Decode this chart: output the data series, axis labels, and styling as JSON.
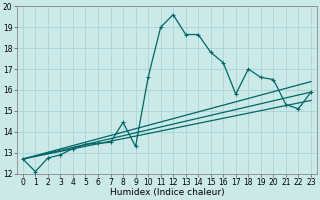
{
  "background_color": "#cce9e9",
  "grid_color": "#aad4d4",
  "line_color": "#006666",
  "xlim": [
    -0.5,
    23.5
  ],
  "ylim": [
    12,
    20
  ],
  "xlabel": "Humidex (Indice chaleur)",
  "xticks": [
    0,
    1,
    2,
    3,
    4,
    5,
    6,
    7,
    8,
    9,
    10,
    11,
    12,
    13,
    14,
    15,
    16,
    17,
    18,
    19,
    20,
    21,
    22,
    23
  ],
  "yticks": [
    12,
    13,
    14,
    15,
    16,
    17,
    18,
    19,
    20
  ],
  "main_x": [
    0,
    1,
    2,
    3,
    4,
    5,
    6,
    7,
    8,
    9,
    10,
    11,
    12,
    13,
    14,
    15,
    16,
    17,
    18,
    19,
    20,
    21,
    22,
    23
  ],
  "main_y": [
    12.7,
    12.1,
    12.75,
    12.9,
    13.2,
    13.4,
    13.45,
    13.5,
    14.45,
    13.3,
    16.6,
    19.0,
    19.6,
    18.65,
    18.65,
    17.8,
    17.3,
    15.8,
    17.0,
    16.6,
    16.5,
    15.3,
    15.1,
    15.9
  ],
  "line2_x": [
    0,
    23
  ],
  "line2_y": [
    12.7,
    16.4
  ],
  "line3_x": [
    0,
    23
  ],
  "line3_y": [
    12.7,
    15.9
  ],
  "line4_x": [
    0,
    23
  ],
  "line4_y": [
    12.7,
    15.5
  ],
  "marker": "+",
  "markersize": 3,
  "linewidth": 0.9,
  "tick_fontsize": 5.5,
  "xlabel_fontsize": 6.5
}
